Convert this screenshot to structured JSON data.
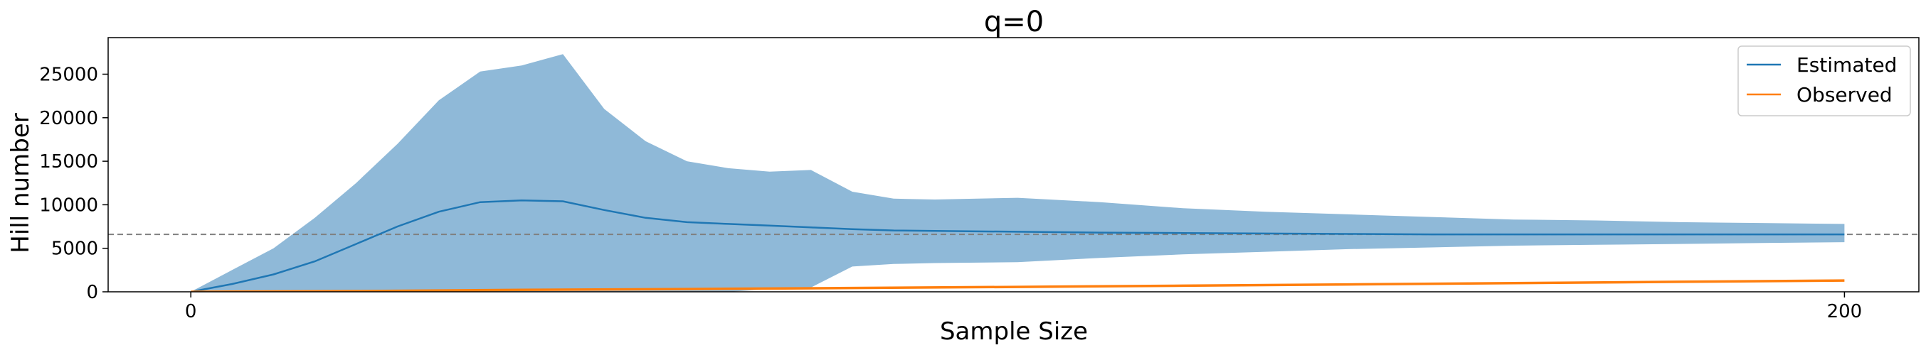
{
  "chart_data": {
    "type": "line",
    "title": "q=0",
    "xlabel": "Sample Size",
    "ylabel": "Hill number",
    "xlim": [
      -10,
      209
    ],
    "ylim": [
      0,
      29200
    ],
    "xticks": [
      0,
      200
    ],
    "yticks": [
      0,
      5000,
      10000,
      15000,
      20000,
      25000
    ],
    "grid": false,
    "legend_position": "top-right",
    "reference_line": {
      "y": 6600,
      "style": "dashed",
      "color": "#808080"
    },
    "series": [
      {
        "name": "Estimated",
        "color": "#1f77b4",
        "band_color": "#8fb9d8",
        "x": [
          0,
          5,
          10,
          15,
          20,
          25,
          30,
          35,
          40,
          45,
          50,
          55,
          60,
          65,
          70,
          75,
          80,
          85,
          90,
          100,
          110,
          120,
          130,
          140,
          150,
          160,
          170,
          180,
          190,
          200
        ],
        "y": [
          0,
          900,
          2000,
          3500,
          5500,
          7500,
          9200,
          10300,
          10500,
          10400,
          9400,
          8500,
          8000,
          7800,
          7600,
          7400,
          7200,
          7050,
          7000,
          6900,
          6800,
          6750,
          6700,
          6650,
          6600,
          6600,
          6600,
          6600,
          6600,
          6600
        ],
        "lower": [
          0,
          0,
          0,
          0,
          0,
          0,
          0,
          0,
          0,
          0,
          0,
          0,
          0,
          0,
          300,
          500,
          2900,
          3200,
          3300,
          3400,
          3900,
          4300,
          4600,
          4900,
          5100,
          5300,
          5400,
          5500,
          5600,
          5700
        ],
        "upper": [
          0,
          2500,
          5000,
          8500,
          12500,
          17000,
          22000,
          25300,
          26000,
          27300,
          21000,
          17300,
          15000,
          14200,
          13800,
          14000,
          11500,
          10700,
          10600,
          10800,
          10300,
          9600,
          9200,
          8900,
          8600,
          8300,
          8200,
          8000,
          7900,
          7800
        ]
      },
      {
        "name": "Observed",
        "color": "#ff7f0e",
        "x": [
          0,
          20,
          40,
          60,
          80,
          100,
          120,
          140,
          160,
          180,
          200
        ],
        "y": [
          0,
          80,
          220,
          320,
          440,
          560,
          700,
          850,
          1000,
          1150,
          1300
        ]
      }
    ]
  }
}
